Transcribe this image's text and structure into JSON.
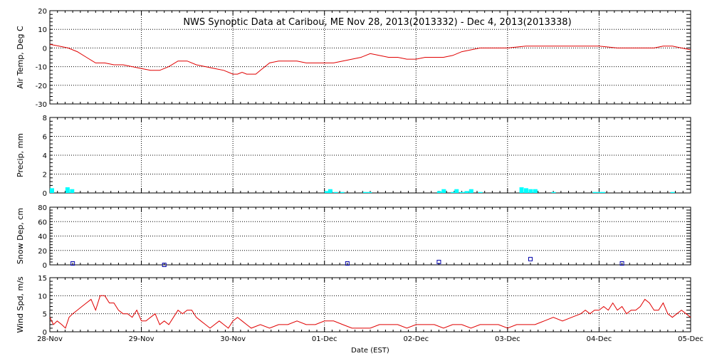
{
  "title": "NWS Synoptic Data at Caribou, ME   Nov 28, 2013(2013332) - Dec  4, 2013(2013338)",
  "xlabel": "Date (EST)",
  "x_tick_labels": [
    "28-Nov",
    "29-Nov",
    "30-Nov",
    "01-Dec",
    "02-Dec",
    "03-Dec",
    "04-Dec",
    "05-Dec"
  ],
  "colors": {
    "temp": "#e00000",
    "precip": "#00ffff",
    "snow": "#0000aa",
    "wind": "#e00000",
    "grid": "#000000"
  },
  "chart_data": [
    {
      "type": "line",
      "ylabel": "Air Temp, Deg C",
      "ylim": [
        -30,
        20
      ],
      "yticks": [
        20,
        10,
        0,
        -10,
        -20,
        -30
      ],
      "x_unit": "days since 28-Nov 00:00",
      "x": [
        0,
        0.1,
        0.2,
        0.3,
        0.4,
        0.5,
        0.6,
        0.7,
        0.8,
        0.9,
        1.0,
        1.1,
        1.2,
        1.3,
        1.4,
        1.5,
        1.6,
        1.7,
        1.8,
        1.9,
        2.0,
        2.05,
        2.1,
        2.15,
        2.2,
        2.25,
        2.3,
        2.35,
        2.4,
        2.5,
        2.6,
        2.7,
        2.8,
        2.9,
        3.0,
        3.1,
        3.2,
        3.3,
        3.4,
        3.5,
        3.6,
        3.7,
        3.8,
        3.9,
        4.0,
        4.1,
        4.2,
        4.3,
        4.4,
        4.5,
        4.6,
        4.7,
        4.8,
        4.9,
        5.0,
        5.2,
        5.4,
        5.6,
        5.8,
        6.0,
        6.2,
        6.4,
        6.6,
        6.7,
        6.8,
        6.9,
        7.0
      ],
      "values": [
        2,
        1,
        0,
        -2,
        -5,
        -8,
        -8,
        -9,
        -9,
        -10,
        -11,
        -12,
        -12,
        -10,
        -7,
        -7,
        -9,
        -10,
        -11,
        -12,
        -14,
        -14,
        -13,
        -14,
        -14,
        -14,
        -12,
        -10,
        -8,
        -7,
        -7,
        -7,
        -8,
        -8,
        -8,
        -8,
        -7,
        -6,
        -5,
        -3,
        -4,
        -5,
        -5,
        -6,
        -6,
        -5,
        -5,
        -5,
        -4,
        -2,
        -1,
        0,
        0,
        0,
        0,
        1,
        1,
        1,
        1,
        1,
        0,
        0,
        0,
        1,
        1,
        0,
        -1
      ]
    },
    {
      "type": "bar",
      "ylabel": "Precip, mm",
      "ylim": [
        0,
        8
      ],
      "yticks": [
        8,
        6,
        4,
        2,
        0
      ],
      "x_unit": "days since 28-Nov 00:00",
      "x": [
        0.0,
        0.17,
        0.22,
        3.0,
        3.04,
        3.1,
        3.17,
        3.42,
        3.47,
        4.23,
        4.28,
        4.38,
        4.42,
        4.48,
        4.53,
        4.58,
        4.68,
        5.13,
        5.18,
        5.23,
        5.28,
        5.48,
        5.93,
        5.98,
        6.02,
        6.78
      ],
      "values": [
        0.5,
        0.6,
        0.4,
        0.2,
        0.4,
        0.1,
        0.1,
        0.1,
        0.1,
        0.2,
        0.4,
        0.1,
        0.4,
        0.1,
        0.2,
        0.4,
        0.1,
        0.6,
        0.5,
        0.4,
        0.4,
        0.1,
        0.1,
        0.1,
        0.1,
        0.1
      ]
    },
    {
      "type": "scatter",
      "ylabel": "Snow Dep, cm",
      "ylim": [
        0,
        80
      ],
      "yticks": [
        80,
        60,
        40,
        20,
        0
      ],
      "x_unit": "days since 28-Nov 00:00",
      "x": [
        0.25,
        1.25,
        3.25,
        4.25,
        5.25,
        6.25
      ],
      "values": [
        2,
        0,
        2,
        4,
        8,
        2
      ]
    },
    {
      "type": "line",
      "ylabel": "Wind Spd, m/s",
      "ylim": [
        0,
        15
      ],
      "yticks": [
        15,
        10,
        5,
        0
      ],
      "x_unit": "days since 28-Nov 00:00",
      "x": [
        0,
        0.04,
        0.08,
        0.13,
        0.17,
        0.21,
        0.25,
        0.3,
        0.35,
        0.4,
        0.45,
        0.5,
        0.55,
        0.6,
        0.65,
        0.7,
        0.75,
        0.8,
        0.85,
        0.9,
        0.95,
        1.0,
        1.05,
        1.1,
        1.15,
        1.2,
        1.25,
        1.3,
        1.35,
        1.4,
        1.45,
        1.5,
        1.55,
        1.6,
        1.65,
        1.7,
        1.75,
        1.8,
        1.85,
        1.9,
        1.95,
        2.0,
        2.05,
        2.1,
        2.15,
        2.2,
        2.3,
        2.4,
        2.5,
        2.6,
        2.7,
        2.8,
        2.9,
        3.0,
        3.1,
        3.2,
        3.3,
        3.4,
        3.5,
        3.6,
        3.7,
        3.8,
        3.9,
        4.0,
        4.1,
        4.2,
        4.3,
        4.4,
        4.5,
        4.6,
        4.7,
        4.8,
        4.9,
        5.0,
        5.1,
        5.2,
        5.3,
        5.4,
        5.5,
        5.6,
        5.7,
        5.8,
        5.85,
        5.9,
        5.95,
        6.0,
        6.05,
        6.1,
        6.15,
        6.2,
        6.25,
        6.3,
        6.35,
        6.4,
        6.45,
        6.5,
        6.55,
        6.6,
        6.65,
        6.7,
        6.75,
        6.8,
        6.85,
        6.9,
        6.95,
        7.0
      ],
      "values": [
        4,
        2,
        3,
        2,
        1,
        4,
        5,
        6,
        7,
        8,
        9,
        6,
        10,
        10,
        8,
        8,
        6,
        5,
        5,
        4,
        6,
        3,
        3,
        4,
        5,
        2,
        3,
        2,
        4,
        6,
        5,
        6,
        6,
        4,
        3,
        2,
        1,
        2,
        3,
        2,
        1,
        3,
        4,
        3,
        2,
        1,
        2,
        1,
        2,
        2,
        3,
        2,
        2,
        3,
        3,
        2,
        1,
        1,
        1,
        2,
        2,
        2,
        1,
        2,
        2,
        2,
        1,
        2,
        2,
        1,
        2,
        2,
        2,
        1,
        2,
        2,
        2,
        3,
        4,
        3,
        4,
        5,
        6,
        5,
        6,
        6,
        7,
        6,
        8,
        6,
        7,
        5,
        6,
        6,
        7,
        9,
        8,
        6,
        6,
        8,
        5,
        4,
        5,
        6,
        5,
        4
      ]
    }
  ]
}
